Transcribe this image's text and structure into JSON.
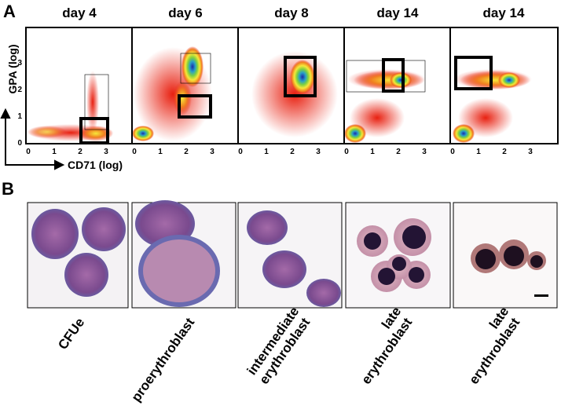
{
  "panel_labels": [
    "A",
    "B"
  ],
  "panel_a": {
    "titles": [
      "day 4",
      "day 6",
      "day 8",
      "day 14",
      "day 14"
    ],
    "y_axis_label": "GPA (log)",
    "x_axis_label": "CD71 (log)",
    "x_tick_labels": [
      "0",
      "1",
      "2",
      "3"
    ],
    "y_tick_labels": [
      "0",
      "1",
      "2",
      "3"
    ]
  },
  "panel_b": {
    "cell_labels": [
      [
        "CFUe"
      ],
      [
        "proerythroblast"
      ],
      [
        "intermediate",
        "erythroblast"
      ],
      [
        "late",
        "erythroblast"
      ],
      [
        "late",
        "erythroblast"
      ]
    ]
  }
}
